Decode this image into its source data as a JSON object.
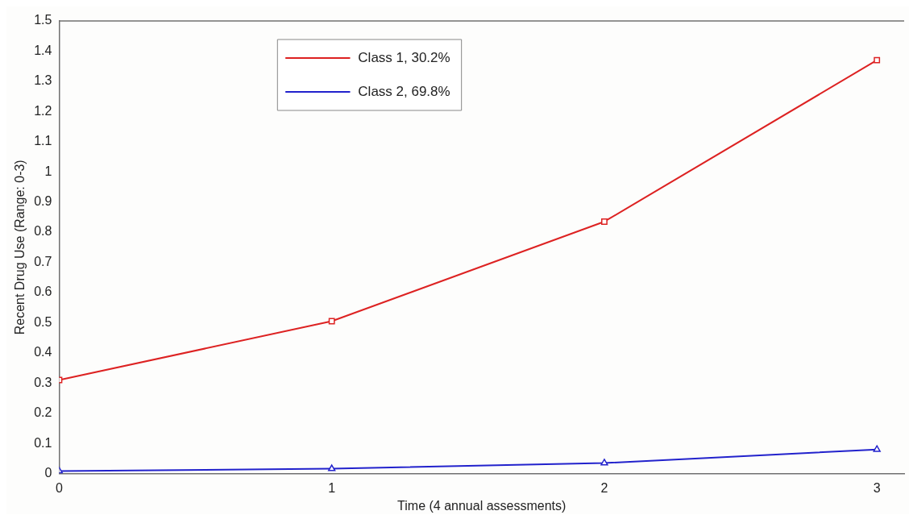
{
  "chart_data": {
    "type": "line",
    "xlabel": "Time (4 annual assessments)",
    "ylabel": "Recent Drug Use (Range: 0-3)",
    "x": [
      0,
      1,
      2,
      3
    ],
    "xlim": [
      0,
      3.1
    ],
    "xticks": [
      0,
      1,
      2,
      3
    ],
    "ylim": [
      0,
      1.5
    ],
    "yticks": [
      0,
      0.1,
      0.2,
      0.3,
      0.4,
      0.5,
      0.6,
      0.7,
      0.8,
      0.9,
      1,
      1.1,
      1.2,
      1.3,
      1.4,
      1.5
    ],
    "series": [
      {
        "name": "Class 1, 30.2%",
        "color": "#dd2222",
        "values": [
          0.31,
          0.505,
          0.835,
          1.37
        ],
        "marker": "square"
      },
      {
        "name": "Class 2, 69.8%",
        "color": "#2222cc",
        "values": [
          0.008,
          0.016,
          0.035,
          0.08
        ],
        "marker": "triangle"
      }
    ],
    "legend": "top",
    "grid": false
  }
}
